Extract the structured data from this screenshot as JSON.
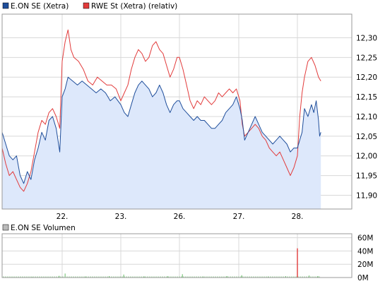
{
  "chart_data": [
    {
      "type": "area",
      "legend": [
        {
          "name": "E.ON SE (Xetra)",
          "color": "#1f4e9b"
        },
        {
          "name": "RWE St (Xetra) (relativ)",
          "color": "#e23b3b"
        }
      ],
      "x_ticks": [
        "22.",
        "23.",
        "26.",
        "27.",
        "28."
      ],
      "y_ticks": [
        "12,30",
        "12,25",
        "12,20",
        "12,15",
        "12,10",
        "12,05",
        "12,00",
        "11,95",
        "11,90"
      ],
      "y_tick_values": [
        12.3,
        12.25,
        12.2,
        12.15,
        12.1,
        12.05,
        12.0,
        11.95,
        11.9
      ],
      "ylim": [
        11.865,
        12.36
      ],
      "x_range": [
        0,
        5.4
      ],
      "grid": true,
      "area_fill": "#dde8fb",
      "series": [
        {
          "name": "E.ON SE (Xetra)",
          "color": "#1f4e9b",
          "points": [
            [
              0.0,
              12.06
            ],
            [
              0.06,
              12.03
            ],
            [
              0.12,
              12.0
            ],
            [
              0.18,
              11.99
            ],
            [
              0.24,
              12.0
            ],
            [
              0.3,
              11.95
            ],
            [
              0.36,
              11.93
            ],
            [
              0.42,
              11.96
            ],
            [
              0.48,
              11.94
            ],
            [
              0.54,
              11.99
            ],
            [
              0.6,
              12.02
            ],
            [
              0.66,
              12.06
            ],
            [
              0.72,
              12.04
            ],
            [
              0.78,
              12.09
            ],
            [
              0.84,
              12.1
            ],
            [
              0.9,
              12.07
            ],
            [
              0.96,
              12.01
            ],
            [
              1.0,
              12.15
            ],
            [
              1.05,
              12.17
            ],
            [
              1.1,
              12.2
            ],
            [
              1.18,
              12.19
            ],
            [
              1.26,
              12.18
            ],
            [
              1.34,
              12.19
            ],
            [
              1.42,
              12.18
            ],
            [
              1.5,
              12.17
            ],
            [
              1.58,
              12.16
            ],
            [
              1.66,
              12.17
            ],
            [
              1.74,
              12.16
            ],
            [
              1.82,
              12.14
            ],
            [
              1.9,
              12.15
            ],
            [
              2.0,
              12.13
            ],
            [
              2.06,
              12.11
            ],
            [
              2.12,
              12.1
            ],
            [
              2.18,
              12.13
            ],
            [
              2.24,
              12.16
            ],
            [
              2.3,
              12.18
            ],
            [
              2.36,
              12.19
            ],
            [
              2.42,
              12.18
            ],
            [
              2.48,
              12.17
            ],
            [
              2.54,
              12.15
            ],
            [
              2.6,
              12.16
            ],
            [
              2.66,
              12.18
            ],
            [
              2.72,
              12.16
            ],
            [
              2.78,
              12.13
            ],
            [
              2.84,
              12.11
            ],
            [
              2.9,
              12.13
            ],
            [
              2.96,
              12.14
            ],
            [
              3.0,
              12.14
            ],
            [
              3.06,
              12.12
            ],
            [
              3.12,
              12.11
            ],
            [
              3.18,
              12.1
            ],
            [
              3.24,
              12.09
            ],
            [
              3.3,
              12.1
            ],
            [
              3.36,
              12.09
            ],
            [
              3.42,
              12.09
            ],
            [
              3.48,
              12.08
            ],
            [
              3.54,
              12.07
            ],
            [
              3.6,
              12.07
            ],
            [
              3.66,
              12.08
            ],
            [
              3.72,
              12.09
            ],
            [
              3.78,
              12.11
            ],
            [
              3.84,
              12.12
            ],
            [
              3.9,
              12.13
            ],
            [
              3.96,
              12.15
            ],
            [
              4.02,
              12.12
            ],
            [
              4.06,
              12.09
            ],
            [
              4.1,
              12.04
            ],
            [
              4.16,
              12.06
            ],
            [
              4.22,
              12.08
            ],
            [
              4.28,
              12.1
            ],
            [
              4.34,
              12.08
            ],
            [
              4.4,
              12.06
            ],
            [
              4.46,
              12.05
            ],
            [
              4.52,
              12.04
            ],
            [
              4.58,
              12.03
            ],
            [
              4.64,
              12.04
            ],
            [
              4.7,
              12.05
            ],
            [
              4.76,
              12.04
            ],
            [
              4.82,
              12.03
            ],
            [
              4.88,
              12.01
            ],
            [
              4.94,
              12.02
            ],
            [
              5.0,
              12.02
            ],
            [
              5.04,
              12.04
            ],
            [
              5.08,
              12.06
            ],
            [
              5.12,
              12.12
            ],
            [
              5.18,
              12.1
            ],
            [
              5.24,
              12.13
            ],
            [
              5.28,
              12.11
            ],
            [
              5.32,
              12.14
            ],
            [
              5.36,
              12.09
            ],
            [
              5.38,
              12.05
            ],
            [
              5.4,
              12.06
            ]
          ]
        },
        {
          "name": "RWE St (Xetra) (relativ)",
          "color": "#e23b3b",
          "points": [
            [
              0.0,
              12.02
            ],
            [
              0.06,
              11.98
            ],
            [
              0.12,
              11.95
            ],
            [
              0.18,
              11.96
            ],
            [
              0.24,
              11.94
            ],
            [
              0.3,
              11.92
            ],
            [
              0.36,
              11.91
            ],
            [
              0.42,
              11.93
            ],
            [
              0.48,
              11.96
            ],
            [
              0.54,
              12.01
            ],
            [
              0.6,
              12.06
            ],
            [
              0.66,
              12.09
            ],
            [
              0.72,
              12.08
            ],
            [
              0.78,
              12.11
            ],
            [
              0.84,
              12.12
            ],
            [
              0.9,
              12.1
            ],
            [
              0.96,
              12.07
            ],
            [
              1.0,
              12.24
            ],
            [
              1.05,
              12.29
            ],
            [
              1.1,
              12.32
            ],
            [
              1.15,
              12.27
            ],
            [
              1.2,
              12.25
            ],
            [
              1.28,
              12.24
            ],
            [
              1.36,
              12.22
            ],
            [
              1.44,
              12.19
            ],
            [
              1.52,
              12.18
            ],
            [
              1.6,
              12.2
            ],
            [
              1.68,
              12.19
            ],
            [
              1.76,
              12.18
            ],
            [
              1.84,
              12.18
            ],
            [
              1.92,
              12.17
            ],
            [
              2.0,
              12.14
            ],
            [
              2.06,
              12.16
            ],
            [
              2.12,
              12.18
            ],
            [
              2.18,
              12.22
            ],
            [
              2.24,
              12.25
            ],
            [
              2.3,
              12.27
            ],
            [
              2.36,
              12.26
            ],
            [
              2.42,
              12.24
            ],
            [
              2.48,
              12.25
            ],
            [
              2.54,
              12.28
            ],
            [
              2.6,
              12.29
            ],
            [
              2.66,
              12.27
            ],
            [
              2.72,
              12.26
            ],
            [
              2.78,
              12.23
            ],
            [
              2.84,
              12.2
            ],
            [
              2.9,
              12.22
            ],
            [
              2.96,
              12.25
            ],
            [
              3.0,
              12.25
            ],
            [
              3.06,
              12.22
            ],
            [
              3.12,
              12.18
            ],
            [
              3.18,
              12.14
            ],
            [
              3.24,
              12.12
            ],
            [
              3.3,
              12.14
            ],
            [
              3.36,
              12.13
            ],
            [
              3.42,
              12.15
            ],
            [
              3.48,
              12.14
            ],
            [
              3.54,
              12.13
            ],
            [
              3.6,
              12.14
            ],
            [
              3.66,
              12.16
            ],
            [
              3.72,
              12.15
            ],
            [
              3.78,
              12.16
            ],
            [
              3.84,
              12.17
            ],
            [
              3.9,
              12.16
            ],
            [
              3.96,
              12.17
            ],
            [
              4.02,
              12.14
            ],
            [
              4.06,
              12.08
            ],
            [
              4.1,
              12.05
            ],
            [
              4.16,
              12.06
            ],
            [
              4.22,
              12.07
            ],
            [
              4.28,
              12.08
            ],
            [
              4.34,
              12.07
            ],
            [
              4.4,
              12.05
            ],
            [
              4.46,
              12.04
            ],
            [
              4.52,
              12.02
            ],
            [
              4.58,
              12.01
            ],
            [
              4.64,
              12.0
            ],
            [
              4.7,
              12.01
            ],
            [
              4.76,
              11.99
            ],
            [
              4.82,
              11.97
            ],
            [
              4.88,
              11.95
            ],
            [
              4.94,
              11.97
            ],
            [
              5.0,
              12.0
            ],
            [
              5.04,
              12.1
            ],
            [
              5.08,
              12.16
            ],
            [
              5.12,
              12.2
            ],
            [
              5.18,
              12.24
            ],
            [
              5.24,
              12.25
            ],
            [
              5.3,
              12.23
            ],
            [
              5.36,
              12.2
            ],
            [
              5.4,
              12.19
            ]
          ]
        }
      ]
    },
    {
      "type": "bar",
      "legend": [
        {
          "name": "E.ON SE Volumen",
          "color": "#bbbbbb"
        }
      ],
      "y_ticks": [
        "60M",
        "40M",
        "20M",
        "0M"
      ],
      "y_tick_values": [
        60,
        40,
        20,
        0
      ],
      "ylim": [
        0,
        66
      ],
      "color": "#66bb66",
      "spike_color": "#e23b3b",
      "spike": {
        "x": 5.0,
        "value": 44
      },
      "volumes": [
        [
          0.2,
          1.0
        ],
        [
          0.5,
          0.8
        ],
        [
          0.8,
          1.2
        ],
        [
          0.95,
          2.5
        ],
        [
          1.05,
          6.0
        ],
        [
          1.4,
          1.5
        ],
        [
          1.8,
          2.0
        ],
        [
          2.05,
          4.5
        ],
        [
          2.4,
          1.5
        ],
        [
          2.8,
          1.8
        ],
        [
          3.05,
          5.0
        ],
        [
          3.4,
          1.5
        ],
        [
          3.8,
          2.0
        ],
        [
          4.05,
          3.5
        ],
        [
          4.5,
          1.5
        ],
        [
          4.8,
          2.0
        ],
        [
          5.2,
          3.0
        ],
        [
          5.35,
          2.0
        ]
      ]
    }
  ]
}
